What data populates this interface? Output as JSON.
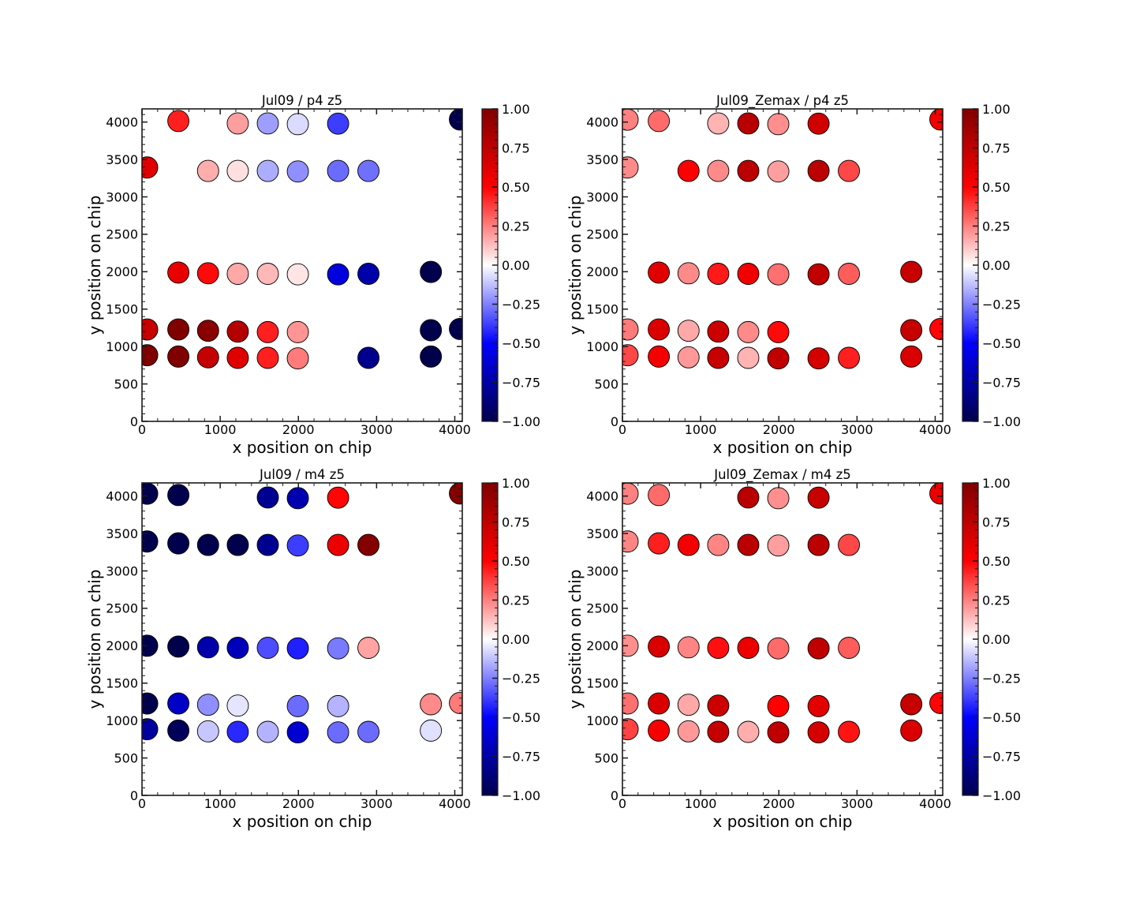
{
  "figure": {
    "background": "#ffffff"
  },
  "colormap": {
    "name": "seismic",
    "stops": [
      "#00004d",
      "#0000ff",
      "#ffffff",
      "#ff0000",
      "#800000"
    ]
  },
  "marker": {
    "edge_color": "#000000"
  },
  "chart_data": [
    {
      "type": "scatter",
      "title": "Jul09 / p4 z5",
      "xlabel": "x position on chip",
      "ylabel": "y position on chip",
      "xlim": [
        0,
        4096
      ],
      "ylim": [
        0,
        4176
      ],
      "xticks": [
        0,
        1000,
        2000,
        3000,
        4000
      ],
      "xtick_labels": [
        "0",
        "1000",
        "2000",
        "3000",
        "4000"
      ],
      "x_minor_step": 200,
      "yticks": [
        0,
        500,
        1000,
        1500,
        2000,
        2500,
        3000,
        3500,
        4000
      ],
      "ytick_labels": [
        "0",
        "500",
        "1000",
        "1500",
        "2000",
        "2500",
        "3000",
        "3500",
        "4000"
      ],
      "y_minor_step": 100,
      "grid": false,
      "legend": "none",
      "colorbar": {
        "placement": "right",
        "range": [
          -1,
          1
        ],
        "ticks": [
          1,
          0.75,
          0.5,
          0.25,
          0,
          -0.25,
          -0.5,
          -0.75,
          -1
        ],
        "tick_labels": [
          "1.00",
          "0.75",
          "0.50",
          "0.25",
          "0.00",
          "−0.25",
          "−0.50",
          "−0.75",
          "−1.00"
        ],
        "minor_step": 0.05
      },
      "points": [
        {
          "x": 465,
          "y": 4014,
          "value": 0.44
        },
        {
          "x": 1225,
          "y": 3982,
          "value": 0.19
        },
        {
          "x": 1609,
          "y": 3982,
          "value": -0.19
        },
        {
          "x": 1993,
          "y": 3972,
          "value": -0.07
        },
        {
          "x": 2508,
          "y": 3979,
          "value": -0.38
        },
        {
          "x": 4066,
          "y": 4035,
          "value": -1.0
        },
        {
          "x": 66,
          "y": 3393,
          "value": 0.62
        },
        {
          "x": 845,
          "y": 3347,
          "value": 0.16
        },
        {
          "x": 1225,
          "y": 3347,
          "value": 0.06
        },
        {
          "x": 1609,
          "y": 3347,
          "value": -0.16
        },
        {
          "x": 1993,
          "y": 3340,
          "value": -0.22
        },
        {
          "x": 2508,
          "y": 3347,
          "value": -0.29
        },
        {
          "x": 2896,
          "y": 3347,
          "value": -0.28
        },
        {
          "x": 465,
          "y": 1989,
          "value": 0.59
        },
        {
          "x": 845,
          "y": 1979,
          "value": 0.48
        },
        {
          "x": 1225,
          "y": 1972,
          "value": 0.17
        },
        {
          "x": 1609,
          "y": 1972,
          "value": 0.14
        },
        {
          "x": 1993,
          "y": 1965,
          "value": 0.05
        },
        {
          "x": 2508,
          "y": 1965,
          "value": -0.59
        },
        {
          "x": 2896,
          "y": 1972,
          "value": -0.74
        },
        {
          "x": 3694,
          "y": 1997,
          "value": -1.0
        },
        {
          "x": 66,
          "y": 1228,
          "value": 0.72
        },
        {
          "x": 465,
          "y": 1228,
          "value": 1.0
        },
        {
          "x": 845,
          "y": 1211,
          "value": 0.97
        },
        {
          "x": 1225,
          "y": 1200,
          "value": 0.79
        },
        {
          "x": 1609,
          "y": 1193,
          "value": 0.44
        },
        {
          "x": 1993,
          "y": 1193,
          "value": 0.21
        },
        {
          "x": 3694,
          "y": 1218,
          "value": -1.0
        },
        {
          "x": 4066,
          "y": 1235,
          "value": -1.0
        },
        {
          "x": 66,
          "y": 884,
          "value": 1.0
        },
        {
          "x": 465,
          "y": 866,
          "value": 1.0
        },
        {
          "x": 845,
          "y": 856,
          "value": 0.73
        },
        {
          "x": 1225,
          "y": 849,
          "value": 0.62
        },
        {
          "x": 1609,
          "y": 849,
          "value": 0.44
        },
        {
          "x": 1993,
          "y": 842,
          "value": 0.26
        },
        {
          "x": 2896,
          "y": 849,
          "value": -0.82
        },
        {
          "x": 3694,
          "y": 866,
          "value": -1.0
        }
      ]
    },
    {
      "type": "scatter",
      "title": "Jul09_Zemax / p4 z5",
      "xlabel": "x position on chip",
      "ylabel": "y position on chip",
      "xlim": [
        0,
        4096
      ],
      "ylim": [
        0,
        4176
      ],
      "xticks": [
        0,
        1000,
        2000,
        3000,
        4000
      ],
      "xtick_labels": [
        "0",
        "1000",
        "2000",
        "3000",
        "4000"
      ],
      "x_minor_step": 200,
      "yticks": [
        0,
        500,
        1000,
        1500,
        2000,
        2500,
        3000,
        3500,
        4000
      ],
      "ytick_labels": [
        "0",
        "500",
        "1000",
        "1500",
        "2000",
        "2500",
        "3000",
        "3500",
        "4000"
      ],
      "y_minor_step": 100,
      "grid": false,
      "legend": "none",
      "colorbar": {
        "placement": "right",
        "range": [
          -1,
          1
        ],
        "ticks": [
          1,
          0.75,
          0.5,
          0.25,
          0,
          -0.25,
          -0.5,
          -0.75,
          -1
        ],
        "tick_labels": [
          "1.00",
          "0.75",
          "0.50",
          "0.25",
          "0.00",
          "−0.25",
          "−0.50",
          "−0.75",
          "−1.00"
        ],
        "minor_step": 0.05
      },
      "points": [
        {
          "x": 66,
          "y": 4032,
          "value": 0.25
        },
        {
          "x": 465,
          "y": 4014,
          "value": 0.29
        },
        {
          "x": 1225,
          "y": 3982,
          "value": 0.15
        },
        {
          "x": 1609,
          "y": 3982,
          "value": 0.78
        },
        {
          "x": 1993,
          "y": 3972,
          "value": 0.22
        },
        {
          "x": 2508,
          "y": 3979,
          "value": 0.68
        },
        {
          "x": 4066,
          "y": 4035,
          "value": 0.56
        },
        {
          "x": 66,
          "y": 3393,
          "value": 0.23
        },
        {
          "x": 845,
          "y": 3347,
          "value": 0.5
        },
        {
          "x": 1225,
          "y": 3347,
          "value": 0.23
        },
        {
          "x": 1609,
          "y": 3347,
          "value": 0.77
        },
        {
          "x": 1993,
          "y": 3340,
          "value": 0.19
        },
        {
          "x": 2508,
          "y": 3347,
          "value": 0.77
        },
        {
          "x": 2896,
          "y": 3347,
          "value": 0.36
        },
        {
          "x": 465,
          "y": 1989,
          "value": 0.62
        },
        {
          "x": 845,
          "y": 1979,
          "value": 0.23
        },
        {
          "x": 1225,
          "y": 1972,
          "value": 0.45
        },
        {
          "x": 1609,
          "y": 1972,
          "value": 0.56
        },
        {
          "x": 1993,
          "y": 1965,
          "value": 0.28
        },
        {
          "x": 2508,
          "y": 1965,
          "value": 0.75
        },
        {
          "x": 2896,
          "y": 1972,
          "value": 0.32
        },
        {
          "x": 3694,
          "y": 1997,
          "value": 0.72
        },
        {
          "x": 66,
          "y": 1228,
          "value": 0.26
        },
        {
          "x": 465,
          "y": 1228,
          "value": 0.64
        },
        {
          "x": 845,
          "y": 1211,
          "value": 0.17
        },
        {
          "x": 1225,
          "y": 1200,
          "value": 0.7
        },
        {
          "x": 1609,
          "y": 1193,
          "value": 0.23
        },
        {
          "x": 1993,
          "y": 1193,
          "value": 0.48
        },
        {
          "x": 3694,
          "y": 1218,
          "value": 0.72
        },
        {
          "x": 4066,
          "y": 1235,
          "value": 0.49
        },
        {
          "x": 66,
          "y": 884,
          "value": 0.36
        },
        {
          "x": 465,
          "y": 866,
          "value": 0.54
        },
        {
          "x": 845,
          "y": 856,
          "value": 0.2
        },
        {
          "x": 1225,
          "y": 849,
          "value": 0.72
        },
        {
          "x": 1609,
          "y": 849,
          "value": 0.15
        },
        {
          "x": 1993,
          "y": 842,
          "value": 0.75
        },
        {
          "x": 2508,
          "y": 842,
          "value": 0.67
        },
        {
          "x": 2896,
          "y": 849,
          "value": 0.44
        },
        {
          "x": 3694,
          "y": 866,
          "value": 0.64
        }
      ]
    },
    {
      "type": "scatter",
      "title": "Jul09 / m4 z5",
      "xlabel": "x position on chip",
      "ylabel": "y position on chip",
      "xlim": [
        0,
        4096
      ],
      "ylim": [
        0,
        4176
      ],
      "xticks": [
        0,
        1000,
        2000,
        3000,
        4000
      ],
      "xtick_labels": [
        "0",
        "1000",
        "2000",
        "3000",
        "4000"
      ],
      "x_minor_step": 200,
      "yticks": [
        0,
        500,
        1000,
        1500,
        2000,
        2500,
        3000,
        3500,
        4000
      ],
      "ytick_labels": [
        "0",
        "500",
        "1000",
        "1500",
        "2000",
        "2500",
        "3000",
        "3500",
        "4000"
      ],
      "y_minor_step": 100,
      "grid": false,
      "legend": "none",
      "colorbar": {
        "placement": "right",
        "range": [
          -1,
          1
        ],
        "ticks": [
          1,
          0.75,
          0.5,
          0.25,
          0,
          -0.25,
          -0.5,
          -0.75,
          -1
        ],
        "tick_labels": [
          "1.00",
          "0.75",
          "0.50",
          "0.25",
          "0.00",
          "−0.25",
          "−0.50",
          "−0.75",
          "−1.00"
        ],
        "minor_step": 0.05
      },
      "points": [
        {
          "x": 66,
          "y": 4032,
          "value": -1.0
        },
        {
          "x": 465,
          "y": 4014,
          "value": -1.0
        },
        {
          "x": 1609,
          "y": 3982,
          "value": -0.81
        },
        {
          "x": 1993,
          "y": 3972,
          "value": -0.72
        },
        {
          "x": 2508,
          "y": 3979,
          "value": 0.49
        },
        {
          "x": 4066,
          "y": 4035,
          "value": 0.98
        },
        {
          "x": 66,
          "y": 3393,
          "value": -1.0
        },
        {
          "x": 465,
          "y": 3368,
          "value": -1.0
        },
        {
          "x": 845,
          "y": 3347,
          "value": -1.0
        },
        {
          "x": 1225,
          "y": 3347,
          "value": -1.0
        },
        {
          "x": 1609,
          "y": 3347,
          "value": -0.81
        },
        {
          "x": 1993,
          "y": 3340,
          "value": -0.38
        },
        {
          "x": 2508,
          "y": 3347,
          "value": 0.57
        },
        {
          "x": 2896,
          "y": 3347,
          "value": 0.98
        },
        {
          "x": 66,
          "y": 2000,
          "value": -1.0
        },
        {
          "x": 465,
          "y": 1989,
          "value": -1.0
        },
        {
          "x": 845,
          "y": 1979,
          "value": -0.74
        },
        {
          "x": 1225,
          "y": 1972,
          "value": -0.69
        },
        {
          "x": 1609,
          "y": 1972,
          "value": -0.35
        },
        {
          "x": 1993,
          "y": 1965,
          "value": -0.44
        },
        {
          "x": 2508,
          "y": 1965,
          "value": -0.26
        },
        {
          "x": 2896,
          "y": 1972,
          "value": 0.18
        },
        {
          "x": 66,
          "y": 1228,
          "value": -1.0
        },
        {
          "x": 465,
          "y": 1228,
          "value": -0.66
        },
        {
          "x": 845,
          "y": 1211,
          "value": -0.22
        },
        {
          "x": 1225,
          "y": 1200,
          "value": -0.05
        },
        {
          "x": 1993,
          "y": 1193,
          "value": -0.29
        },
        {
          "x": 2508,
          "y": 1193,
          "value": -0.15
        },
        {
          "x": 3694,
          "y": 1218,
          "value": 0.23
        },
        {
          "x": 4066,
          "y": 1235,
          "value": 0.26
        },
        {
          "x": 66,
          "y": 884,
          "value": -0.77
        },
        {
          "x": 465,
          "y": 866,
          "value": -0.96
        },
        {
          "x": 845,
          "y": 856,
          "value": -0.11
        },
        {
          "x": 1225,
          "y": 849,
          "value": -0.42
        },
        {
          "x": 1609,
          "y": 849,
          "value": -0.15
        },
        {
          "x": 1993,
          "y": 842,
          "value": -0.63
        },
        {
          "x": 2508,
          "y": 842,
          "value": -0.29
        },
        {
          "x": 2896,
          "y": 849,
          "value": -0.29
        },
        {
          "x": 3694,
          "y": 866,
          "value": -0.06
        }
      ]
    },
    {
      "type": "scatter",
      "title": "Jul09_Zemax / m4 z5",
      "xlabel": "x position on chip",
      "ylabel": "y position on chip",
      "xlim": [
        0,
        4096
      ],
      "ylim": [
        0,
        4176
      ],
      "xticks": [
        0,
        1000,
        2000,
        3000,
        4000
      ],
      "xtick_labels": [
        "0",
        "1000",
        "2000",
        "3000",
        "4000"
      ],
      "x_minor_step": 200,
      "yticks": [
        0,
        500,
        1000,
        1500,
        2000,
        2500,
        3000,
        3500,
        4000
      ],
      "ytick_labels": [
        "0",
        "500",
        "1000",
        "1500",
        "2000",
        "2500",
        "3000",
        "3500",
        "4000"
      ],
      "y_minor_step": 100,
      "grid": false,
      "legend": "none",
      "colorbar": {
        "placement": "right",
        "range": [
          -1,
          1
        ],
        "ticks": [
          1,
          0.75,
          0.5,
          0.25,
          0,
          -0.25,
          -0.5,
          -0.75,
          -1
        ],
        "tick_labels": [
          "1.00",
          "0.75",
          "0.50",
          "0.25",
          "0.00",
          "−0.25",
          "−0.50",
          "−0.75",
          "−1.00"
        ],
        "minor_step": 0.05
      },
      "points": [
        {
          "x": 66,
          "y": 4032,
          "value": 0.25
        },
        {
          "x": 465,
          "y": 4014,
          "value": 0.29
        },
        {
          "x": 1609,
          "y": 3982,
          "value": 0.78
        },
        {
          "x": 1993,
          "y": 3972,
          "value": 0.22
        },
        {
          "x": 2508,
          "y": 3979,
          "value": 0.72
        },
        {
          "x": 4066,
          "y": 4035,
          "value": 0.57
        },
        {
          "x": 66,
          "y": 3393,
          "value": 0.24
        },
        {
          "x": 465,
          "y": 3368,
          "value": 0.44
        },
        {
          "x": 845,
          "y": 3347,
          "value": 0.54
        },
        {
          "x": 1225,
          "y": 3347,
          "value": 0.24
        },
        {
          "x": 1609,
          "y": 3347,
          "value": 0.77
        },
        {
          "x": 1993,
          "y": 3340,
          "value": 0.19
        },
        {
          "x": 2508,
          "y": 3347,
          "value": 0.77
        },
        {
          "x": 2896,
          "y": 3347,
          "value": 0.36
        },
        {
          "x": 66,
          "y": 2000,
          "value": 0.22
        },
        {
          "x": 465,
          "y": 1989,
          "value": 0.65
        },
        {
          "x": 845,
          "y": 1979,
          "value": 0.24
        },
        {
          "x": 1225,
          "y": 1972,
          "value": 0.47
        },
        {
          "x": 1609,
          "y": 1972,
          "value": 0.57
        },
        {
          "x": 1993,
          "y": 1965,
          "value": 0.29
        },
        {
          "x": 2508,
          "y": 1965,
          "value": 0.75
        },
        {
          "x": 2896,
          "y": 1972,
          "value": 0.32
        },
        {
          "x": 66,
          "y": 1228,
          "value": 0.28
        },
        {
          "x": 465,
          "y": 1228,
          "value": 0.64
        },
        {
          "x": 845,
          "y": 1211,
          "value": 0.17
        },
        {
          "x": 1225,
          "y": 1200,
          "value": 0.7
        },
        {
          "x": 1993,
          "y": 1193,
          "value": 0.5
        },
        {
          "x": 2508,
          "y": 1193,
          "value": 0.61
        },
        {
          "x": 3694,
          "y": 1218,
          "value": 0.72
        },
        {
          "x": 4066,
          "y": 1235,
          "value": 0.49
        },
        {
          "x": 66,
          "y": 884,
          "value": 0.37
        },
        {
          "x": 465,
          "y": 866,
          "value": 0.53
        },
        {
          "x": 845,
          "y": 856,
          "value": 0.2
        },
        {
          "x": 1225,
          "y": 849,
          "value": 0.73
        },
        {
          "x": 1609,
          "y": 849,
          "value": 0.16
        },
        {
          "x": 1993,
          "y": 842,
          "value": 0.75
        },
        {
          "x": 2508,
          "y": 842,
          "value": 0.67
        },
        {
          "x": 2896,
          "y": 849,
          "value": 0.46
        },
        {
          "x": 3694,
          "y": 866,
          "value": 0.64
        }
      ]
    }
  ]
}
